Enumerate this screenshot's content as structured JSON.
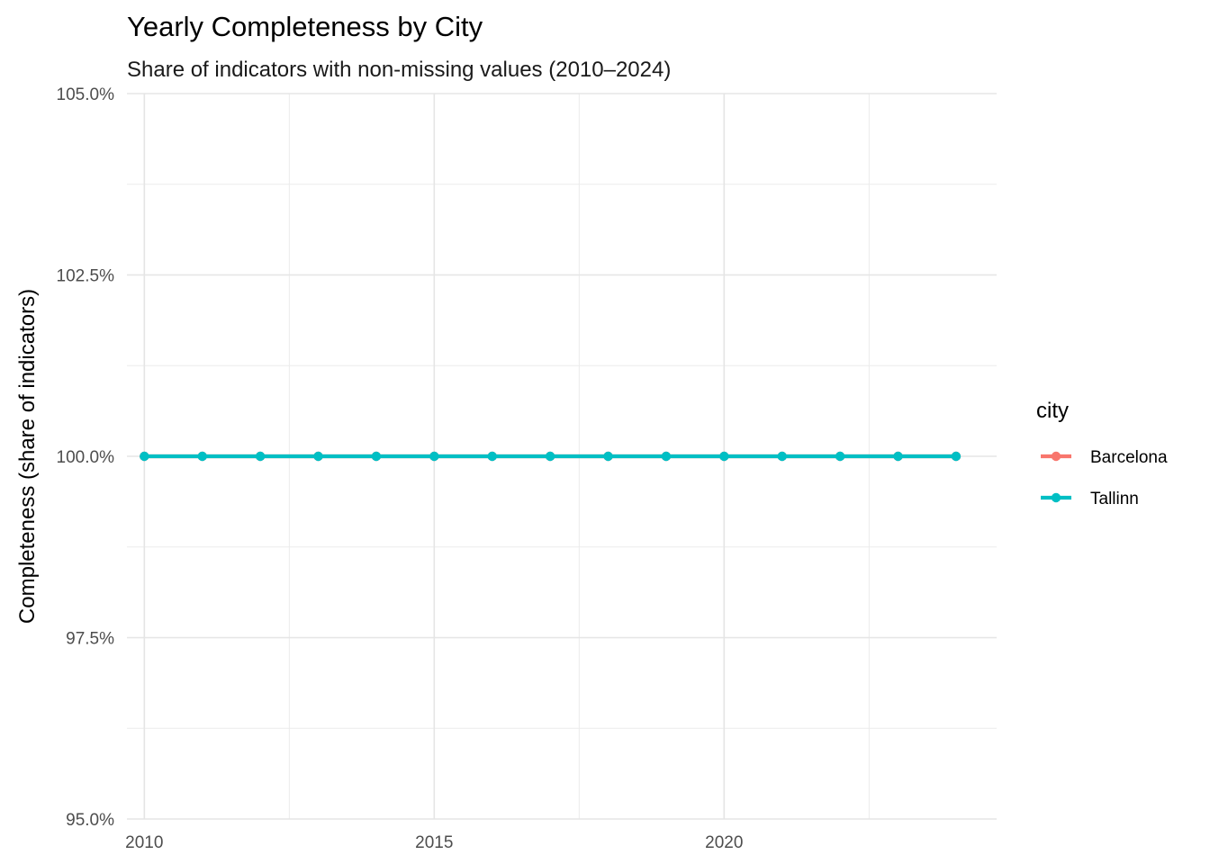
{
  "chart_data": {
    "type": "line",
    "title": "Yearly Completeness by City",
    "subtitle": "Share of indicators with non-missing values (2010–2024)",
    "xlabel": "",
    "ylabel": "Completeness (share of indicators)",
    "x": [
      2010,
      2011,
      2012,
      2013,
      2014,
      2015,
      2016,
      2017,
      2018,
      2019,
      2020,
      2021,
      2022,
      2023,
      2024
    ],
    "xlim": [
      2009.7,
      2024.7
    ],
    "ylim": [
      0.95,
      1.05
    ],
    "x_ticks": [
      2010,
      2015,
      2020
    ],
    "x_tick_labels": [
      "2010",
      "2015",
      "2020"
    ],
    "y_ticks": [
      0.95,
      0.975,
      1.0,
      1.025,
      1.05
    ],
    "y_tick_labels": [
      "95.0%",
      "97.5%",
      "100.0%",
      "102.5%",
      "105.0%"
    ],
    "grid": true,
    "legend": {
      "title": "city",
      "position": "right"
    },
    "series": [
      {
        "name": "Barcelona",
        "color": "#F8766D",
        "values": [
          1.0,
          1.0,
          1.0,
          1.0,
          1.0,
          1.0,
          1.0,
          1.0,
          1.0,
          1.0,
          1.0,
          1.0,
          1.0,
          1.0,
          1.0
        ]
      },
      {
        "name": "Tallinn",
        "color": "#00BFC4",
        "values": [
          1.0,
          1.0,
          1.0,
          1.0,
          1.0,
          1.0,
          1.0,
          1.0,
          1.0,
          1.0,
          1.0,
          1.0,
          1.0,
          1.0,
          1.0
        ]
      }
    ]
  }
}
